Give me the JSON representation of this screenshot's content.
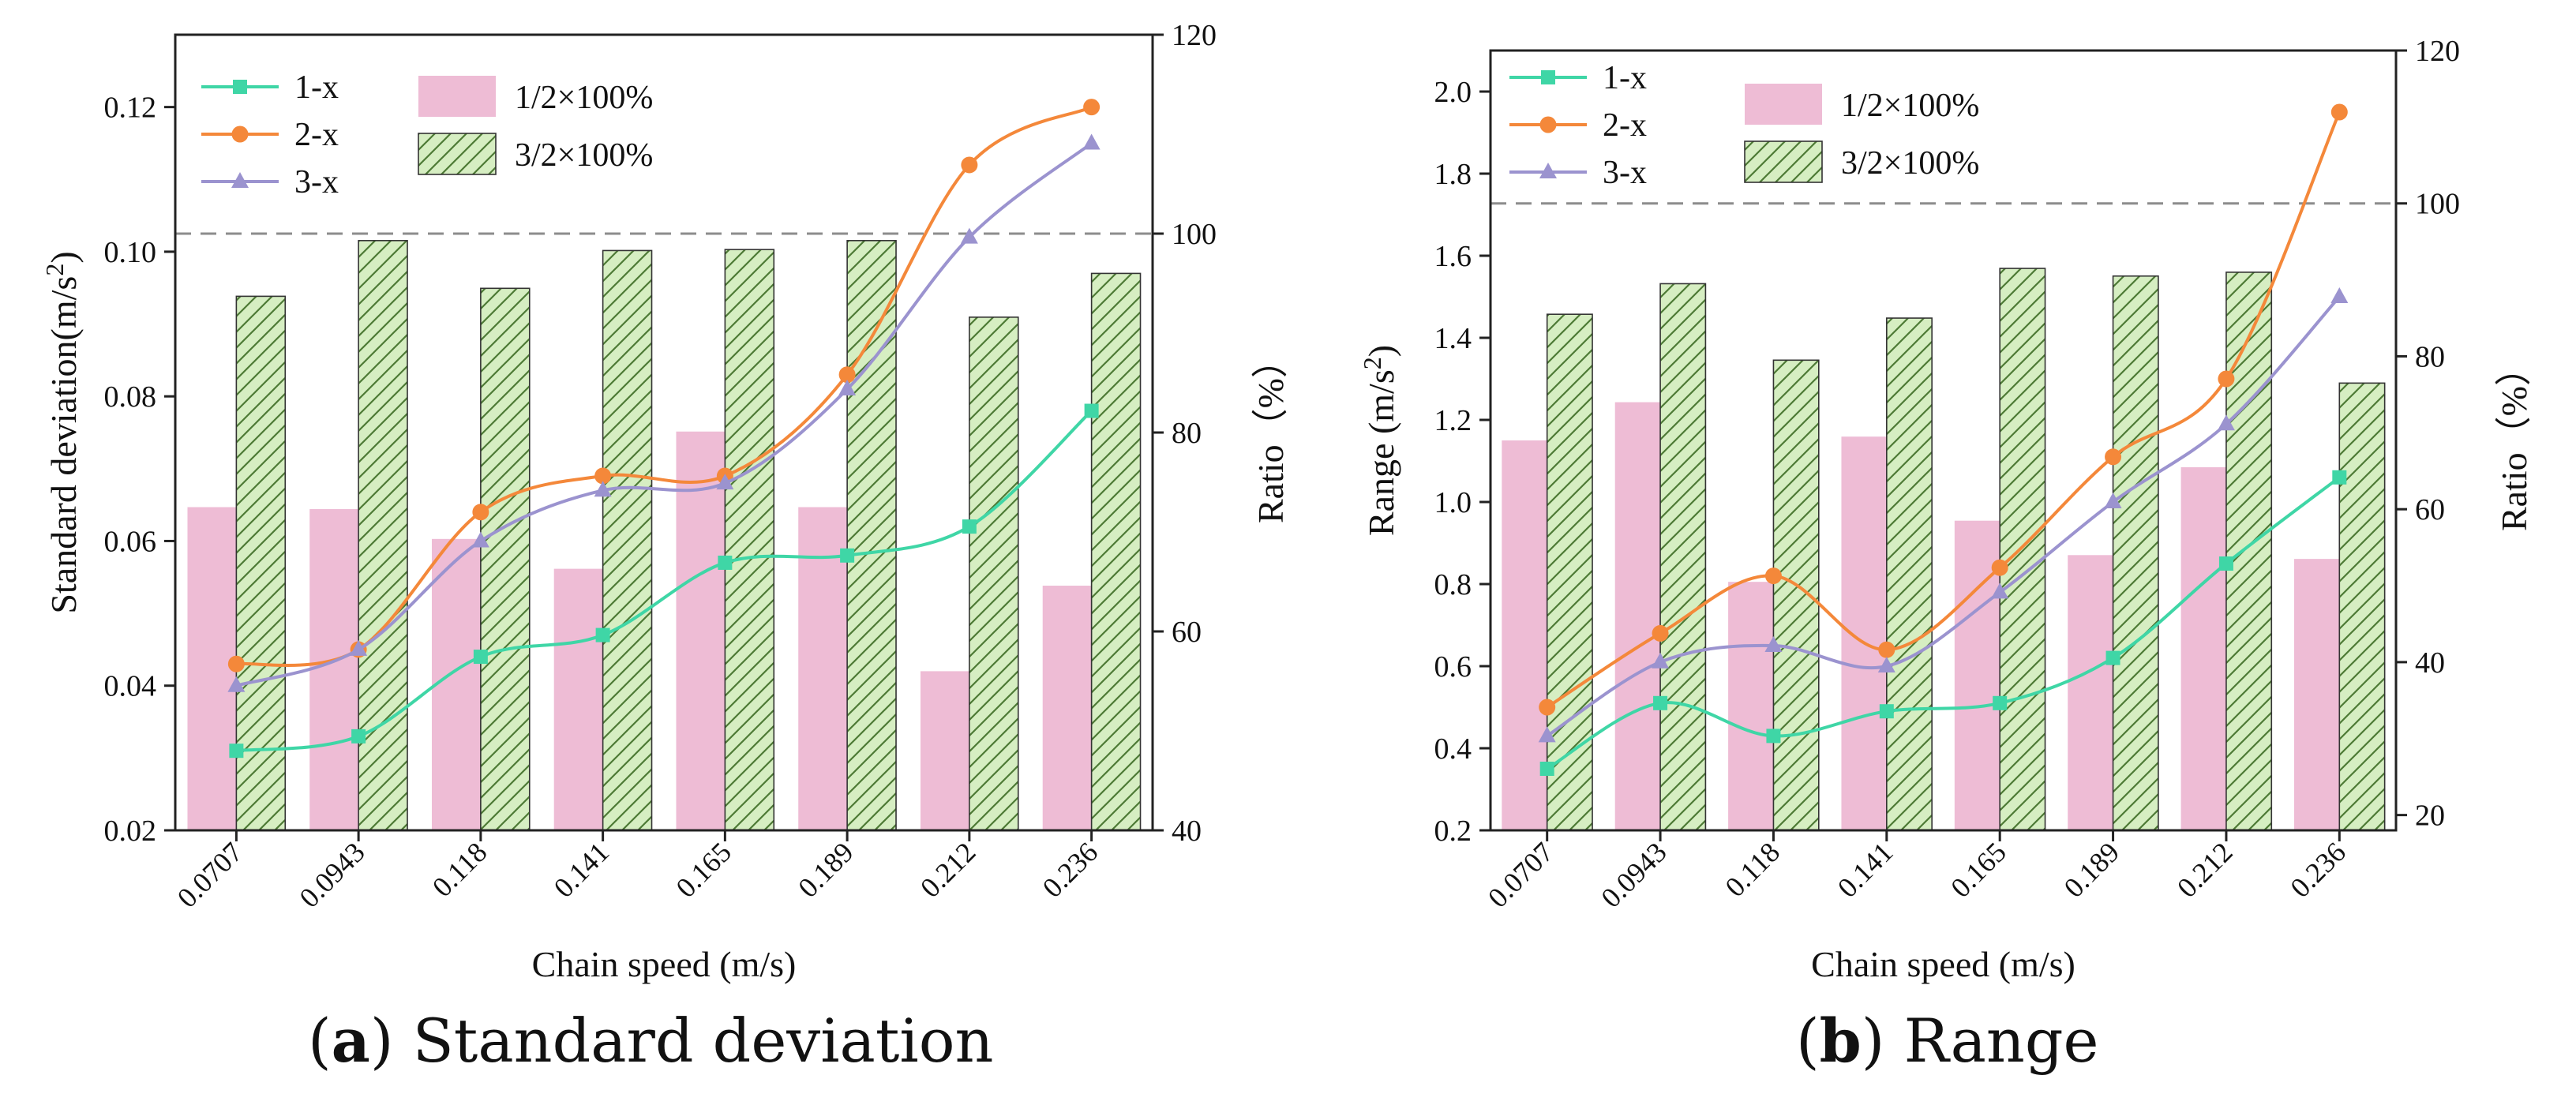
{
  "figure": {
    "background": "#ffffff",
    "colors": {
      "s1": "#3fd6a6",
      "s2": "#f4883a",
      "s3": "#9b93cf",
      "bar1": "#eebcd5",
      "bar2": "#d6eec2",
      "bar2_hatch": "#4d7a35",
      "axis": "#222222",
      "refline": "#8c8c8c"
    }
  },
  "chart_data": [
    {
      "id": "a",
      "type": "bar+line",
      "caption_letter": "a",
      "caption_text": " Standard deviation",
      "xlabel": "Chain speed (m/s)",
      "ylabel_main": "Standard deviation(m/s",
      "ylabel_sup": "2",
      "ylabel_tail": ")",
      "y2label": "Ratio（%）",
      "categories": [
        "0.0707",
        "0.0943",
        "0.118",
        "0.141",
        "0.165",
        "0.189",
        "0.212",
        "0.236"
      ],
      "ylim": [
        0.02,
        0.13
      ],
      "yticks": [
        0.02,
        0.04,
        0.06,
        0.08,
        0.1,
        0.12
      ],
      "ytick_labels": [
        "0.02",
        "0.04",
        "0.06",
        "0.08",
        "0.10",
        "0.12"
      ],
      "y2lim": [
        40,
        120
      ],
      "y2ticks": [
        40,
        60,
        80,
        100,
        120
      ],
      "y2tick_labels": [
        "40",
        "60",
        "80",
        "100",
        "120"
      ],
      "refline_y2": 100,
      "bars": [
        {
          "name": "1/2×100%",
          "values": [
            72.5,
            72.3,
            69.3,
            66.3,
            80.1,
            72.5,
            56.0,
            64.6
          ]
        },
        {
          "name": "3/2×100%",
          "values": [
            93.7,
            99.3,
            94.5,
            98.3,
            98.4,
            99.3,
            91.6,
            96.0
          ]
        }
      ],
      "series": [
        {
          "name": "1-x",
          "marker": "square",
          "values": [
            0.031,
            0.033,
            0.044,
            0.047,
            0.057,
            0.058,
            0.062,
            0.078
          ]
        },
        {
          "name": "2-x",
          "marker": "circle",
          "values": [
            0.043,
            0.045,
            0.064,
            0.069,
            0.069,
            0.083,
            0.112,
            0.12
          ]
        },
        {
          "name": "3-x",
          "marker": "triangle",
          "values": [
            0.04,
            0.045,
            0.06,
            0.067,
            0.068,
            0.081,
            0.102,
            0.115
          ]
        }
      ]
    },
    {
      "id": "b",
      "type": "bar+line",
      "caption_letter": "b",
      "caption_text": " Range",
      "xlabel": "Chain speed (m/s)",
      "ylabel_main": "Range (m/s",
      "ylabel_sup": "2",
      "ylabel_tail": ")",
      "y2label": "Ratio（%）",
      "categories": [
        "0.0707",
        "0.0943",
        "0.118",
        "0.141",
        "0.165",
        "0.189",
        "0.212",
        "0.236"
      ],
      "ylim": [
        0.2,
        2.1
      ],
      "yticks": [
        0.2,
        0.4,
        0.6,
        0.8,
        1.0,
        1.2,
        1.4,
        1.6,
        1.8,
        2.0
      ],
      "ytick_labels": [
        "0.2",
        "0.4",
        "0.6",
        "0.8",
        "1.0",
        "1.2",
        "1.4",
        "1.6",
        "1.8",
        "2.0"
      ],
      "y2lim": [
        18,
        120
      ],
      "y2ticks": [
        20,
        40,
        60,
        80,
        100,
        120
      ],
      "y2tick_labels": [
        "20",
        "40",
        "60",
        "80",
        "100",
        "120"
      ],
      "refline_y2": 100,
      "bars": [
        {
          "name": "1/2×100%",
          "values": [
            69.0,
            74.0,
            50.5,
            69.5,
            58.5,
            54.0,
            65.5,
            53.5
          ]
        },
        {
          "name": "3/2×100%",
          "values": [
            85.5,
            89.5,
            79.5,
            85.0,
            91.5,
            90.5,
            91.0,
            76.5
          ]
        }
      ],
      "series": [
        {
          "name": "1-x",
          "marker": "square",
          "values": [
            0.35,
            0.51,
            0.43,
            0.49,
            0.51,
            0.62,
            0.85,
            1.06
          ]
        },
        {
          "name": "2-x",
          "marker": "circle",
          "values": [
            0.5,
            0.68,
            0.82,
            0.64,
            0.84,
            1.11,
            1.3,
            1.95
          ]
        },
        {
          "name": "3-x",
          "marker": "triangle",
          "values": [
            0.43,
            0.61,
            0.65,
            0.6,
            0.78,
            1.0,
            1.19,
            1.5
          ]
        }
      ]
    }
  ]
}
